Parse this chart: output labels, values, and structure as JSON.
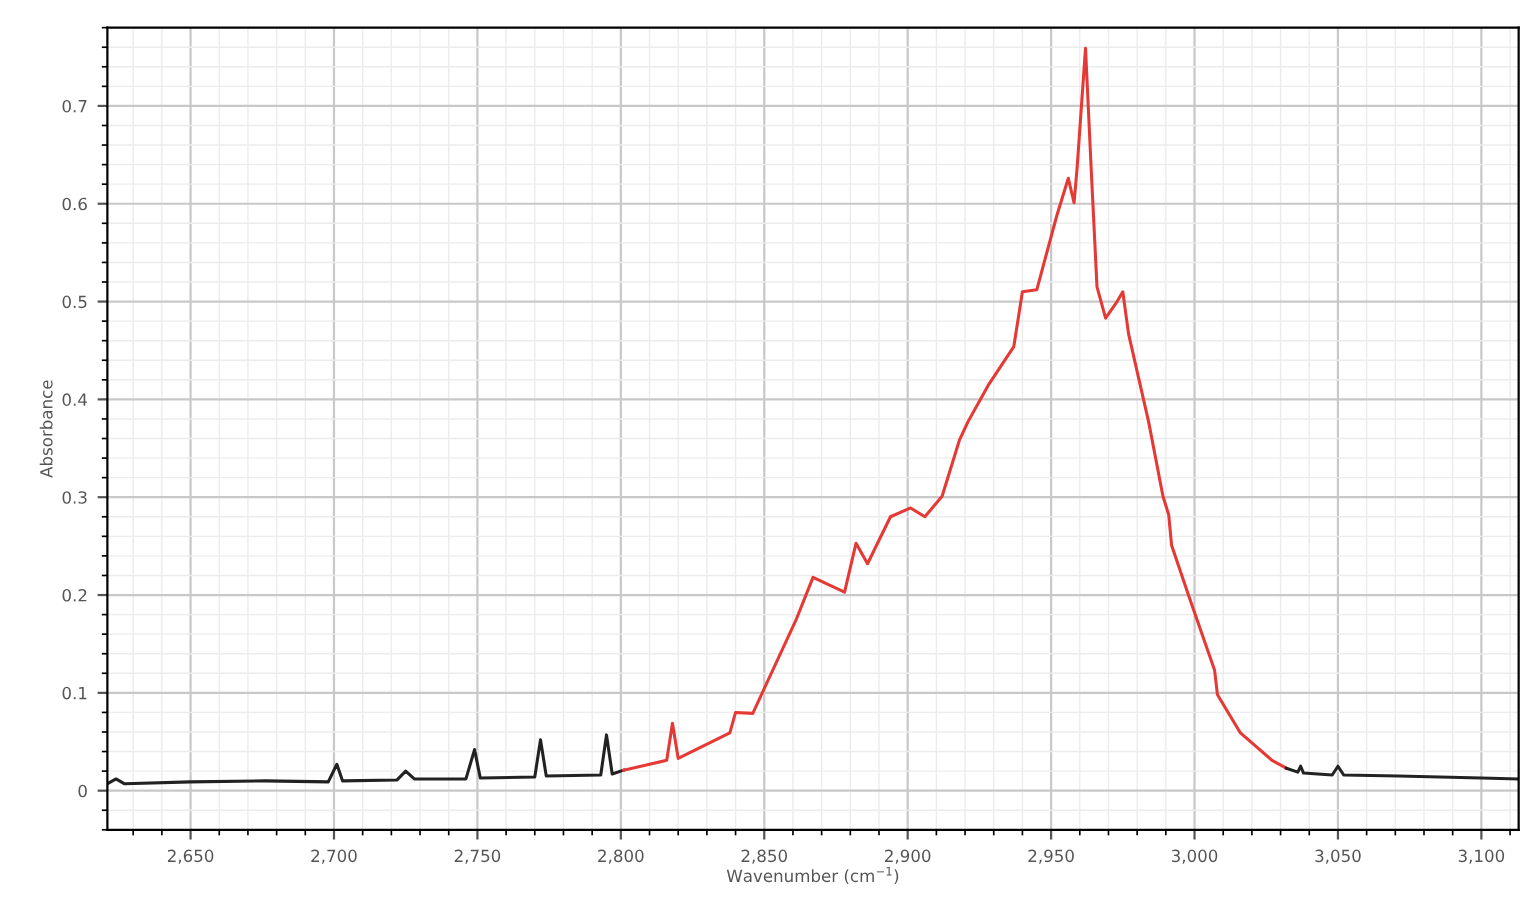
{
  "chart_data": {
    "type": "line",
    "xlabel": "Wavenumber (cm$^{−1}$)",
    "ylabel": "Absorbance",
    "xlim": [
      2621,
      3113
    ],
    "ylim": [
      -0.04,
      0.78
    ],
    "xticks": [
      {
        "value": 2650,
        "label": "2,650"
      },
      {
        "value": 2700,
        "label": "2,700"
      },
      {
        "value": 2750,
        "label": "2,750"
      },
      {
        "value": 2800,
        "label": "2,800"
      },
      {
        "value": 2850,
        "label": "2,850"
      },
      {
        "value": 2900,
        "label": "2,900"
      },
      {
        "value": 2950,
        "label": "2,950"
      },
      {
        "value": 3000,
        "label": "3,000"
      },
      {
        "value": 3050,
        "label": "3,050"
      },
      {
        "value": 3100,
        "label": "3,100"
      }
    ],
    "yticks": [
      0,
      0.1,
      0.2,
      0.3,
      0.4,
      0.5,
      0.6,
      0.7
    ],
    "grid": true,
    "marker": "none",
    "line_style": "solid",
    "series": [
      {
        "color": "#222222",
        "x": [
          2621,
          2624,
          2627,
          2650,
          2676,
          2698,
          2701,
          2703,
          2722,
          2725,
          2728,
          2746,
          2749,
          2751,
          2770,
          2772,
          2774,
          2793,
          2795,
          2797,
          2801
        ],
        "values": [
          0.007,
          0.012,
          0.007,
          0.009,
          0.01,
          0.009,
          0.027,
          0.01,
          0.011,
          0.02,
          0.012,
          0.012,
          0.042,
          0.013,
          0.014,
          0.052,
          0.015,
          0.016,
          0.057,
          0.017,
          0.021
        ]
      },
      {
        "color": "#e53935",
        "x": [
          2801,
          2816,
          2818,
          2820,
          2838,
          2840,
          2846,
          2861,
          2867,
          2878,
          2882,
          2886,
          2894,
          2901,
          2906,
          2912,
          2918,
          2921,
          2928,
          2937,
          2940,
          2945,
          2952,
          2956,
          2958,
          2959,
          2962,
          2964,
          2966,
          2969,
          2973,
          2975,
          2977,
          2984,
          2989,
          2991,
          2992,
          2998,
          3007,
          3008,
          3016,
          3027,
          3032
        ],
        "values": [
          0.021,
          0.031,
          0.069,
          0.033,
          0.059,
          0.08,
          0.079,
          0.174,
          0.218,
          0.203,
          0.253,
          0.232,
          0.28,
          0.289,
          0.28,
          0.301,
          0.358,
          0.377,
          0.414,
          0.454,
          0.51,
          0.512,
          0.588,
          0.626,
          0.601,
          0.634,
          0.759,
          0.634,
          0.515,
          0.483,
          0.5,
          0.51,
          0.467,
          0.377,
          0.301,
          0.282,
          0.251,
          0.199,
          0.123,
          0.098,
          0.059,
          0.031,
          0.023
        ]
      },
      {
        "color": "#222222",
        "x": [
          3032,
          3036,
          3037,
          3038,
          3048,
          3050,
          3052,
          3071,
          3100,
          3113
        ],
        "values": [
          0.023,
          0.019,
          0.025,
          0.018,
          0.016,
          0.025,
          0.016,
          0.015,
          0.013,
          0.012
        ]
      }
    ]
  }
}
